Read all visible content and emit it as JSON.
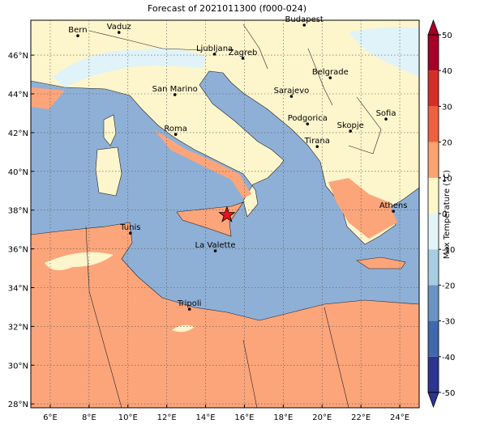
{
  "title": "Forecast of 2021011300 (f000-024)",
  "map": {
    "lonlim": [
      5,
      25
    ],
    "latlim": [
      27.8,
      47.8
    ],
    "grid": true,
    "lonticks": [
      {
        "value": 6,
        "label": "6°E"
      },
      {
        "value": 8,
        "label": "8°E"
      },
      {
        "value": 10,
        "label": "10°E"
      },
      {
        "value": 12,
        "label": "12°E"
      },
      {
        "value": 14,
        "label": "14°E"
      },
      {
        "value": 16,
        "label": "16°E"
      },
      {
        "value": 18,
        "label": "18°E"
      },
      {
        "value": 20,
        "label": "20°E"
      },
      {
        "value": 22,
        "label": "22°E"
      },
      {
        "value": 24,
        "label": "24°E"
      }
    ],
    "latticks": [
      {
        "value": 28,
        "label": "28°N"
      },
      {
        "value": 30,
        "label": "30°N"
      },
      {
        "value": 32,
        "label": "32°N"
      },
      {
        "value": 34,
        "label": "34°N"
      },
      {
        "value": 36,
        "label": "36°N"
      },
      {
        "value": 38,
        "label": "38°N"
      },
      {
        "value": 40,
        "label": "40°N"
      },
      {
        "value": 42,
        "label": "42°N"
      },
      {
        "value": 44,
        "label": "44°N"
      },
      {
        "value": 46,
        "label": "46°N"
      }
    ],
    "cities": [
      {
        "name": "Bern",
        "lon": 7.42,
        "lat": 47.0
      },
      {
        "name": "Vaduz",
        "lon": 9.54,
        "lat": 47.17
      },
      {
        "name": "Budapest",
        "lon": 19.08,
        "lat": 47.55
      },
      {
        "name": "Ljubljana",
        "lon": 14.46,
        "lat": 46.05
      },
      {
        "name": "Zagreb",
        "lon": 15.92,
        "lat": 45.84
      },
      {
        "name": "Belgrade",
        "lon": 20.42,
        "lat": 44.83
      },
      {
        "name": "San Marino",
        "lon": 12.42,
        "lat": 43.96
      },
      {
        "name": "Sarajevo",
        "lon": 18.42,
        "lat": 43.87
      },
      {
        "name": "Sofia",
        "lon": 23.29,
        "lat": 42.7
      },
      {
        "name": "Roma",
        "lon": 12.46,
        "lat": 41.91
      },
      {
        "name": "Podgorica",
        "lon": 19.25,
        "lat": 42.45
      },
      {
        "name": "Skopje",
        "lon": 21.46,
        "lat": 42.08
      },
      {
        "name": "Tirana",
        "lon": 19.75,
        "lat": 41.28
      },
      {
        "name": "Athens",
        "lon": 23.67,
        "lat": 37.94
      },
      {
        "name": "Tunis",
        "lon": 10.13,
        "lat": 36.81
      },
      {
        "name": "La Valette",
        "lon": 14.5,
        "lat": 35.9
      },
      {
        "name": "Tripoli",
        "lon": 13.17,
        "lat": 32.89
      }
    ],
    "marker": {
      "lon": 15.1,
      "lat": 37.75,
      "color": "#e8141c"
    }
  },
  "colorbar": {
    "label": "Max Temperature (°C)",
    "lim": [
      -50,
      50
    ],
    "ticks": [
      -50,
      -40,
      -30,
      -20,
      -10,
      0,
      10,
      20,
      30,
      40,
      50
    ],
    "colors": [
      "#2c3591",
      "#4068ac",
      "#6b94c4",
      "#a7cde3",
      "#e3f4f8",
      "#fdf8c8",
      "#fca372",
      "#ee613f",
      "#d42f26",
      "#a50026"
    ]
  }
}
